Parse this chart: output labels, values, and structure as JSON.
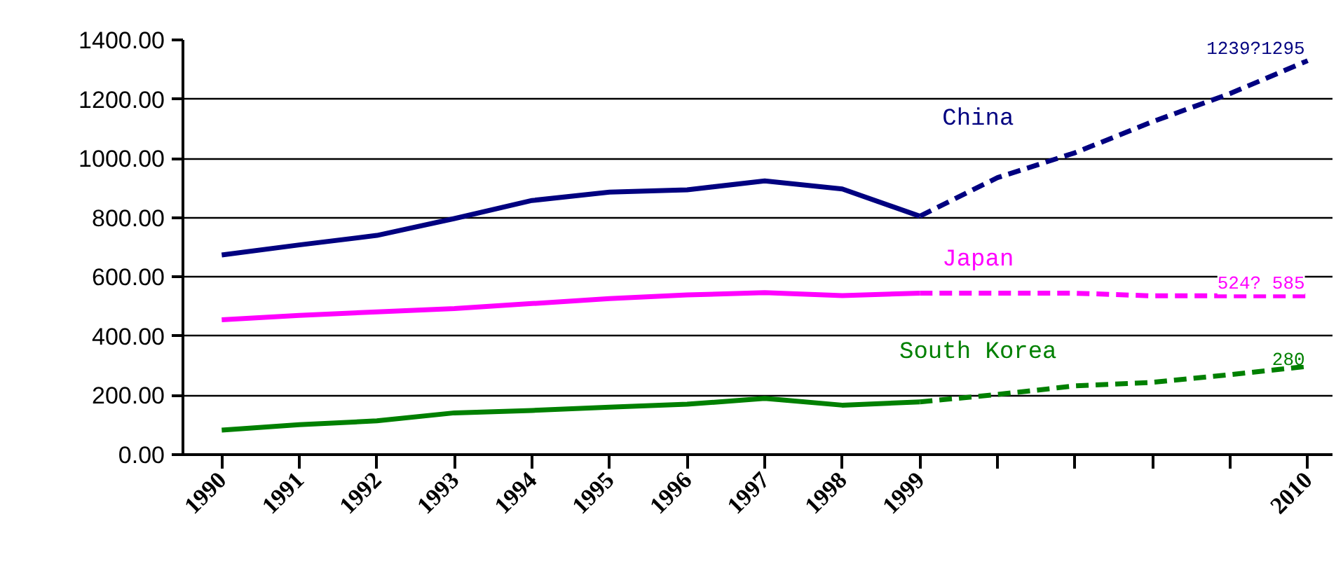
{
  "chart_data": {
    "type": "line",
    "ylim": [
      0,
      1400
    ],
    "grid": "y",
    "legend": false,
    "categories": [
      "1990",
      "1991",
      "1992",
      "1993",
      "1994",
      "1995",
      "1996",
      "1997",
      "1998",
      "1999",
      null,
      null,
      null,
      null,
      "2010"
    ],
    "yticks": [
      {
        "value": 0,
        "label": "0.00"
      },
      {
        "value": 200,
        "label": "200.00"
      },
      {
        "value": 400,
        "label": "400.00"
      },
      {
        "value": 600,
        "label": "600.00"
      },
      {
        "value": 800,
        "label": "800.00"
      },
      {
        "value": 1000,
        "label": "1000.00"
      },
      {
        "value": 1200,
        "label": "1200.00"
      },
      {
        "value": 1400,
        "label": "1400.00"
      }
    ],
    "series": [
      {
        "name": "China",
        "color": "#000080",
        "line_style": "solid",
        "values": [
          674,
          708,
          740,
          797,
          858,
          886,
          894,
          924,
          897,
          805,
          null,
          null,
          null,
          null,
          null
        ]
      },
      {
        "color": "#000080",
        "line_style": "dashed",
        "values": [
          null,
          null,
          null,
          null,
          null,
          null,
          null,
          null,
          null,
          805,
          935,
          1019,
          1124,
          1219,
          1330
        ]
      },
      {
        "name": "Japan",
        "color": "#ff00ff",
        "line_style": "solid",
        "values": [
          455,
          470,
          482,
          493,
          510,
          527,
          539,
          547,
          537,
          545,
          null,
          null,
          null,
          null,
          null
        ]
      },
      {
        "color": "#ff00ff",
        "line_style": "dashed",
        "values": [
          null,
          null,
          null,
          null,
          null,
          null,
          null,
          null,
          null,
          545,
          545,
          545,
          536,
          536,
          536
        ]
      },
      {
        "name": "South Korea",
        "color": "#008000",
        "line_style": "solid",
        "values": [
          83,
          101,
          114,
          141,
          149,
          160,
          170,
          190,
          167,
          178,
          null,
          null,
          null,
          null,
          null
        ]
      },
      {
        "color": "#008000",
        "line_style": "dashed",
        "values": [
          null,
          null,
          null,
          null,
          null,
          null,
          null,
          null,
          null,
          178,
          203,
          232,
          244,
          270,
          298
        ]
      }
    ],
    "annotations": [
      {
        "text": "1239?1295",
        "x": "2010",
        "y": 1330
      },
      {
        "text": "524? 585",
        "x": "2010",
        "y": 536
      },
      {
        "text": "280",
        "x": "2010",
        "y": 298
      }
    ]
  }
}
